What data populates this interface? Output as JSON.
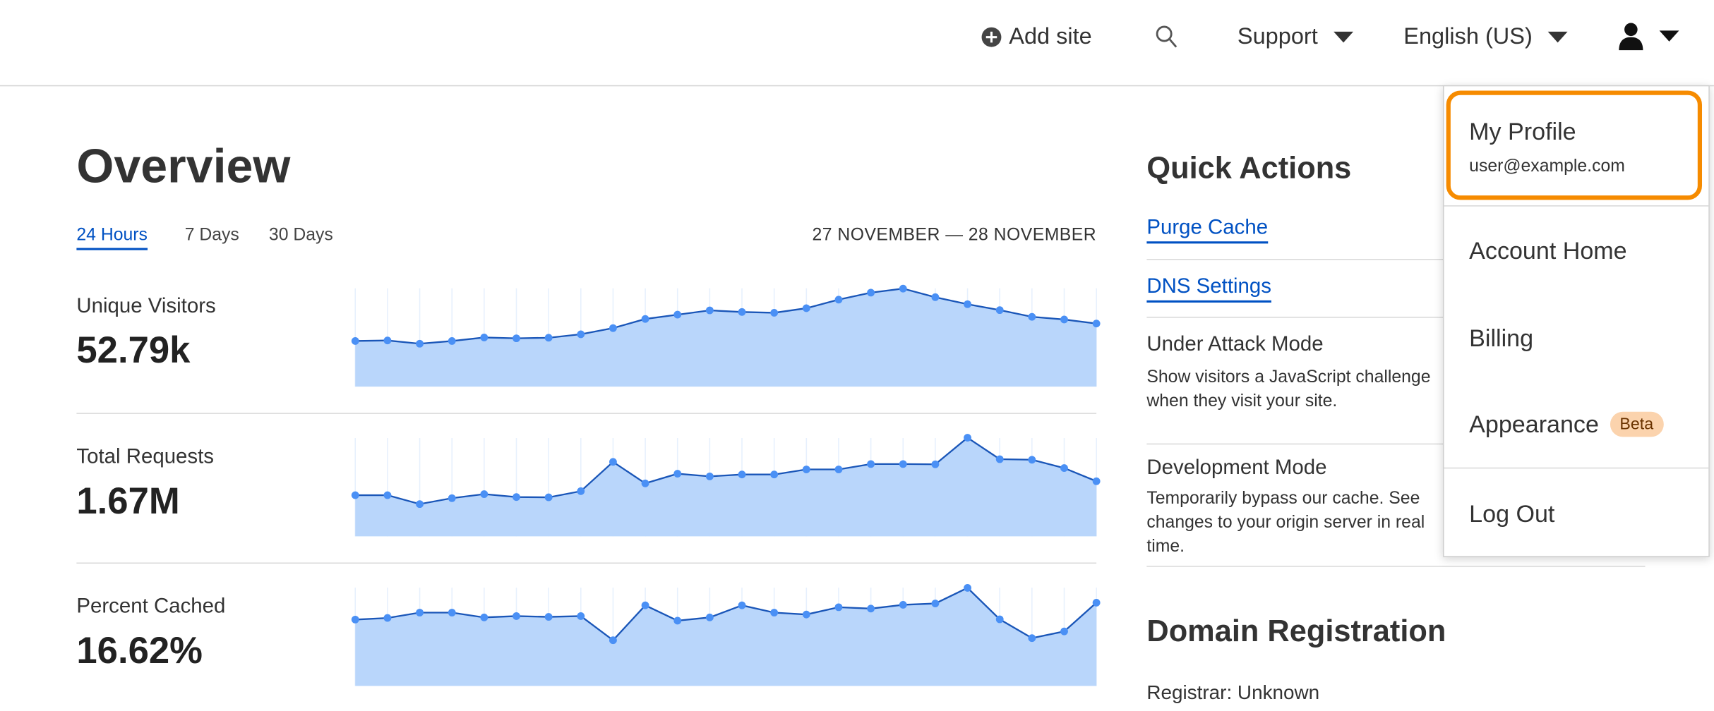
{
  "header": {
    "add_site": "Add site",
    "support": "Support",
    "language": "English (US)",
    "icons": [
      "plus-circle-icon",
      "search-icon",
      "caret-down-icon",
      "user-icon"
    ]
  },
  "overview": {
    "title": "Overview",
    "tabs": [
      {
        "label": "24 Hours",
        "active": true
      },
      {
        "label": "7 Days",
        "active": false
      },
      {
        "label": "30 Days",
        "active": false
      }
    ],
    "date_range": "27 NOVEMBER — 28 NOVEMBER",
    "metrics": [
      {
        "label": "Unique Visitors",
        "value": "52.79k"
      },
      {
        "label": "Total Requests",
        "value": "1.67M"
      },
      {
        "label": "Percent Cached",
        "value": "16.62%"
      }
    ]
  },
  "quick_actions": {
    "title": "Quick Actions",
    "links": [
      "Purge Cache",
      "DNS Settings"
    ],
    "under_attack": {
      "title": "Under Attack Mode",
      "desc": "Show visitors a JavaScript challenge when they visit your site."
    },
    "dev_mode": {
      "title": "Development Mode",
      "desc": "Temporarily bypass our cache. See changes to your origin server in real time."
    }
  },
  "domain_registration": {
    "title": "Domain Registration",
    "registrar": "Registrar: Unknown"
  },
  "user_menu": {
    "profile": "My Profile",
    "email": "user@example.com",
    "items": [
      "Account Home",
      "Billing",
      "Appearance",
      "Log Out"
    ],
    "beta": "Beta"
  },
  "colors": {
    "accent": "#0051c3",
    "highlight": "#f68b00",
    "chart_fill": "#b9d6fb",
    "chart_line": "#1a56b8",
    "chart_point": "#4a90f5"
  },
  "chart_data": [
    {
      "type": "area",
      "series": [
        {
          "values": [
            170,
            172,
            160,
            170,
            183,
            180,
            182,
            195,
            218,
            252,
            268,
            284,
            278,
            275,
            292,
            324,
            350,
            365,
            333,
            307,
            285,
            260,
            250,
            235
          ]
        }
      ],
      "ylim": [
        0,
        370
      ],
      "grid": "vertical"
    },
    {
      "type": "area",
      "series": [
        {
          "values": [
            153,
            153,
            120,
            142,
            157,
            146,
            145,
            168,
            277,
            197,
            233,
            223,
            230,
            230,
            249,
            249,
            269,
            269,
            268,
            367,
            287,
            285,
            254,
            205
          ]
        }
      ],
      "ylim": [
        0,
        370
      ],
      "grid": "vertical"
    },
    {
      "type": "area",
      "series": [
        {
          "values": [
            247,
            253,
            273,
            273,
            255,
            260,
            257,
            260,
            170,
            300,
            243,
            255,
            300,
            273,
            266,
            293,
            288,
            302,
            307,
            365,
            248,
            178,
            203,
            310
          ]
        }
      ],
      "ylim": [
        0,
        370
      ],
      "grid": "vertical"
    }
  ]
}
